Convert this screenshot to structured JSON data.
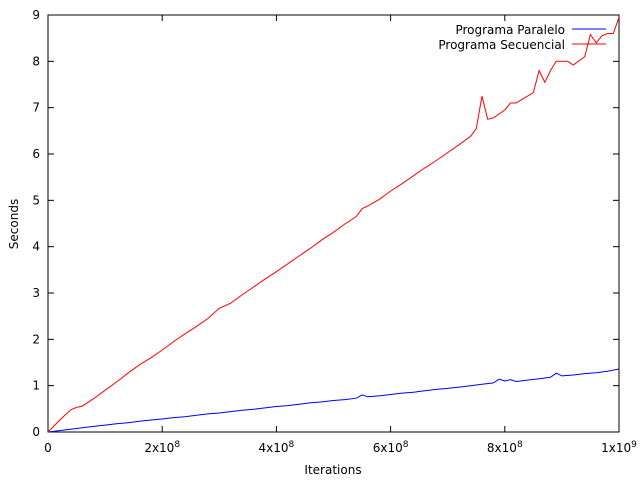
{
  "chart_data": {
    "type": "line",
    "xlabel": "Iterations",
    "ylabel": "Seconds",
    "xlim": [
      0,
      1000000000
    ],
    "ylim": [
      0,
      9
    ],
    "x_ticks": [
      {
        "value": 0,
        "label": "0",
        "sup": ""
      },
      {
        "value": 200000000,
        "label": "2x10",
        "sup": "8"
      },
      {
        "value": 400000000,
        "label": "4x10",
        "sup": "8"
      },
      {
        "value": 600000000,
        "label": "6x10",
        "sup": "8"
      },
      {
        "value": 800000000,
        "label": "8x10",
        "sup": "8"
      },
      {
        "value": 1000000000,
        "label": "1x10",
        "sup": "9"
      }
    ],
    "y_ticks": [
      {
        "value": 0,
        "label": "0"
      },
      {
        "value": 1,
        "label": "1"
      },
      {
        "value": 2,
        "label": "2"
      },
      {
        "value": 3,
        "label": "3"
      },
      {
        "value": 4,
        "label": "4"
      },
      {
        "value": 5,
        "label": "5"
      },
      {
        "value": 6,
        "label": "6"
      },
      {
        "value": 7,
        "label": "7"
      },
      {
        "value": 8,
        "label": "8"
      },
      {
        "value": 9,
        "label": "9"
      }
    ],
    "grid": false,
    "legend_position": "top-right",
    "series": [
      {
        "name": "Programa Paralelo",
        "color": "#0000ff",
        "points": [
          [
            0,
            0.0
          ],
          [
            20000000,
            0.03
          ],
          [
            40000000,
            0.06
          ],
          [
            60000000,
            0.09
          ],
          [
            80000000,
            0.12
          ],
          [
            100000000,
            0.15
          ],
          [
            120000000,
            0.18
          ],
          [
            140000000,
            0.2
          ],
          [
            160000000,
            0.23
          ],
          [
            180000000,
            0.26
          ],
          [
            200000000,
            0.28
          ],
          [
            220000000,
            0.31
          ],
          [
            240000000,
            0.33
          ],
          [
            260000000,
            0.36
          ],
          [
            280000000,
            0.39
          ],
          [
            300000000,
            0.41
          ],
          [
            320000000,
            0.44
          ],
          [
            340000000,
            0.47
          ],
          [
            360000000,
            0.49
          ],
          [
            380000000,
            0.52
          ],
          [
            400000000,
            0.55
          ],
          [
            420000000,
            0.57
          ],
          [
            440000000,
            0.6
          ],
          [
            460000000,
            0.63
          ],
          [
            480000000,
            0.65
          ],
          [
            500000000,
            0.68
          ],
          [
            520000000,
            0.7
          ],
          [
            540000000,
            0.73
          ],
          [
            550000000,
            0.8
          ],
          [
            560000000,
            0.76
          ],
          [
            580000000,
            0.78
          ],
          [
            600000000,
            0.81
          ],
          [
            620000000,
            0.84
          ],
          [
            640000000,
            0.86
          ],
          [
            660000000,
            0.89
          ],
          [
            680000000,
            0.92
          ],
          [
            700000000,
            0.94
          ],
          [
            720000000,
            0.97
          ],
          [
            740000000,
            1.0
          ],
          [
            760000000,
            1.03
          ],
          [
            780000000,
            1.06
          ],
          [
            790000000,
            1.14
          ],
          [
            800000000,
            1.1
          ],
          [
            810000000,
            1.13
          ],
          [
            820000000,
            1.09
          ],
          [
            840000000,
            1.12
          ],
          [
            860000000,
            1.15
          ],
          [
            880000000,
            1.18
          ],
          [
            890000000,
            1.27
          ],
          [
            900000000,
            1.21
          ],
          [
            920000000,
            1.23
          ],
          [
            940000000,
            1.26
          ],
          [
            960000000,
            1.28
          ],
          [
            980000000,
            1.31
          ],
          [
            1000000000,
            1.36
          ]
        ]
      },
      {
        "name": "Programa Secuencial",
        "color": "#ff0000",
        "points": [
          [
            0,
            0.0
          ],
          [
            20000000,
            0.25
          ],
          [
            40000000,
            0.48
          ],
          [
            50000000,
            0.53
          ],
          [
            60000000,
            0.56
          ],
          [
            80000000,
            0.72
          ],
          [
            100000000,
            0.9
          ],
          [
            120000000,
            1.08
          ],
          [
            140000000,
            1.27
          ],
          [
            160000000,
            1.45
          ],
          [
            180000000,
            1.6
          ],
          [
            200000000,
            1.77
          ],
          [
            220000000,
            1.95
          ],
          [
            240000000,
            2.12
          ],
          [
            260000000,
            2.28
          ],
          [
            280000000,
            2.45
          ],
          [
            300000000,
            2.67
          ],
          [
            320000000,
            2.78
          ],
          [
            340000000,
            2.96
          ],
          [
            360000000,
            3.13
          ],
          [
            380000000,
            3.3
          ],
          [
            400000000,
            3.46
          ],
          [
            420000000,
            3.63
          ],
          [
            440000000,
            3.8
          ],
          [
            460000000,
            3.97
          ],
          [
            480000000,
            4.15
          ],
          [
            500000000,
            4.31
          ],
          [
            520000000,
            4.49
          ],
          [
            540000000,
            4.65
          ],
          [
            550000000,
            4.82
          ],
          [
            560000000,
            4.88
          ],
          [
            580000000,
            5.02
          ],
          [
            600000000,
            5.2
          ],
          [
            620000000,
            5.36
          ],
          [
            640000000,
            5.53
          ],
          [
            660000000,
            5.7
          ],
          [
            680000000,
            5.86
          ],
          [
            700000000,
            6.03
          ],
          [
            720000000,
            6.2
          ],
          [
            740000000,
            6.38
          ],
          [
            750000000,
            6.55
          ],
          [
            760000000,
            7.25
          ],
          [
            770000000,
            6.75
          ],
          [
            780000000,
            6.78
          ],
          [
            800000000,
            6.95
          ],
          [
            810000000,
            7.1
          ],
          [
            820000000,
            7.1
          ],
          [
            840000000,
            7.25
          ],
          [
            850000000,
            7.32
          ],
          [
            860000000,
            7.8
          ],
          [
            870000000,
            7.55
          ],
          [
            880000000,
            7.8
          ],
          [
            890000000,
            8.0
          ],
          [
            910000000,
            8.0
          ],
          [
            920000000,
            7.92
          ],
          [
            940000000,
            8.1
          ],
          [
            950000000,
            8.58
          ],
          [
            960000000,
            8.4
          ],
          [
            970000000,
            8.55
          ],
          [
            980000000,
            8.6
          ],
          [
            990000000,
            8.6
          ],
          [
            1000000000,
            8.95
          ]
        ]
      }
    ]
  }
}
